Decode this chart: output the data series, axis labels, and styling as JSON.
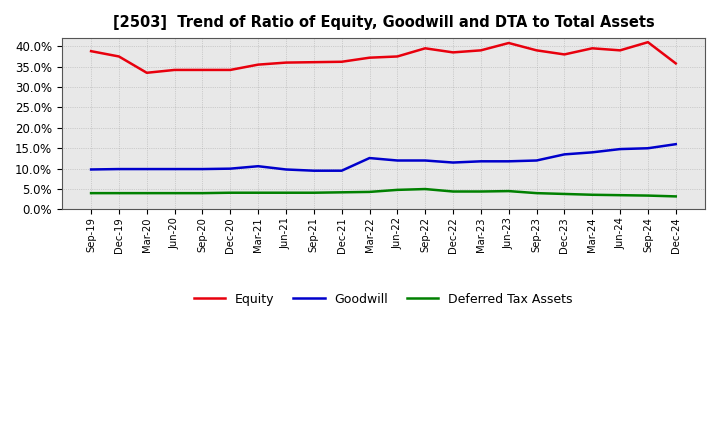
{
  "title": "[2503]  Trend of Ratio of Equity, Goodwill and DTA to Total Assets",
  "x_labels": [
    "Sep-19",
    "Dec-19",
    "Mar-20",
    "Jun-20",
    "Sep-20",
    "Dec-20",
    "Mar-21",
    "Jun-21",
    "Sep-21",
    "Dec-21",
    "Mar-22",
    "Jun-22",
    "Sep-22",
    "Dec-22",
    "Mar-23",
    "Jun-23",
    "Sep-23",
    "Dec-23",
    "Mar-24",
    "Jun-24",
    "Sep-24",
    "Dec-24"
  ],
  "equity": [
    38.8,
    37.5,
    33.5,
    34.2,
    34.2,
    34.2,
    35.5,
    36.0,
    36.1,
    36.2,
    37.2,
    37.5,
    39.5,
    38.5,
    39.0,
    40.8,
    39.0,
    38.0,
    39.5,
    39.0,
    41.0,
    35.8
  ],
  "goodwill": [
    9.8,
    9.9,
    9.9,
    9.9,
    9.9,
    10.0,
    10.6,
    9.8,
    9.5,
    9.5,
    12.6,
    12.0,
    12.0,
    11.5,
    11.8,
    11.8,
    12.0,
    13.5,
    14.0,
    14.8,
    15.0,
    16.0
  ],
  "dta": [
    4.0,
    4.0,
    4.0,
    4.0,
    4.0,
    4.1,
    4.1,
    4.1,
    4.1,
    4.2,
    4.3,
    4.8,
    5.0,
    4.4,
    4.4,
    4.5,
    4.0,
    3.8,
    3.6,
    3.5,
    3.4,
    3.2
  ],
  "equity_color": "#e8000d",
  "goodwill_color": "#0000cc",
  "dta_color": "#008000",
  "background_color": "#ffffff",
  "plot_bg_color": "#e8e8e8",
  "grid_color": "#999999",
  "ylim": [
    0,
    42
  ],
  "yticks": [
    0.0,
    5.0,
    10.0,
    15.0,
    20.0,
    25.0,
    30.0,
    35.0,
    40.0
  ],
  "legend_labels": [
    "Equity",
    "Goodwill",
    "Deferred Tax Assets"
  ]
}
